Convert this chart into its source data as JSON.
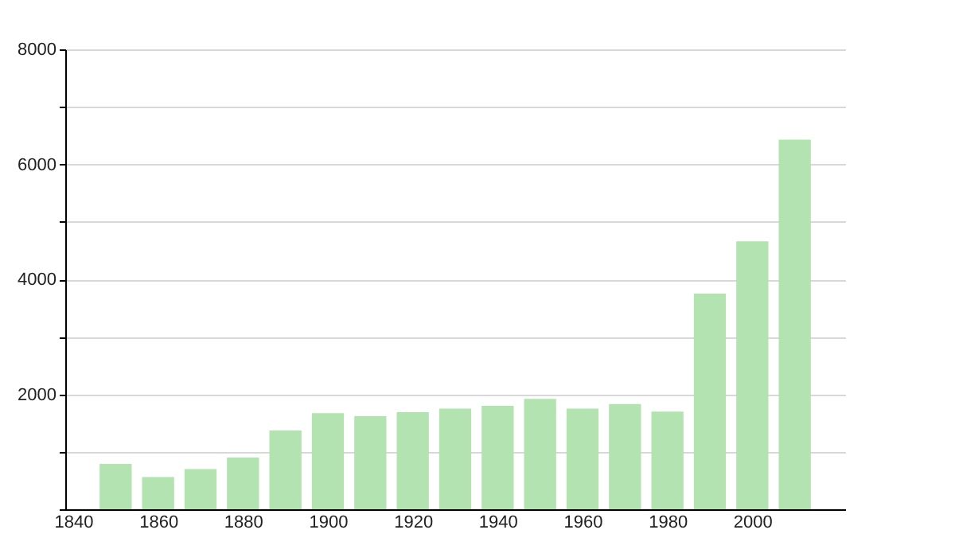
{
  "chart_data": {
    "type": "bar",
    "x": [
      1850,
      1860,
      1870,
      1880,
      1890,
      1900,
      1910,
      1920,
      1930,
      1940,
      1950,
      1960,
      1970,
      1980,
      1990,
      2000,
      2010
    ],
    "values": [
      790,
      560,
      700,
      900,
      1370,
      1670,
      1620,
      1690,
      1750,
      1800,
      1920,
      1750,
      1830,
      1700,
      3750,
      4660,
      6430
    ],
    "color": "#b3e3b0",
    "xlim": [
      1840,
      2020
    ],
    "xticks": [
      1840,
      1860,
      1880,
      1900,
      1920,
      1940,
      1960,
      1980,
      2000
    ],
    "ylim": [
      0,
      8000
    ],
    "yticks": [
      {
        "value": 0,
        "label": null
      },
      {
        "value": 1000,
        "label": null
      },
      2000,
      {
        "value": 3000,
        "label": null
      },
      4000,
      {
        "value": 5000,
        "label": null
      },
      6000,
      {
        "value": 7000,
        "label": null
      },
      8000
    ],
    "grid": "y"
  }
}
